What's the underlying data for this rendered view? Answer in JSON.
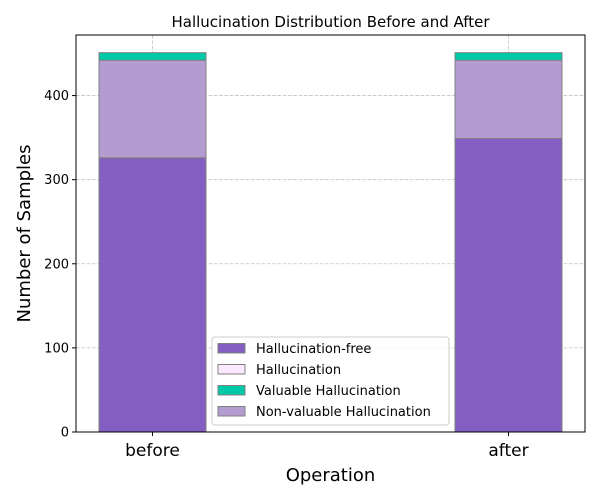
{
  "chart_data": {
    "type": "bar",
    "stacked": true,
    "title": "Hallucination Distribution Before and After",
    "xlabel": "Operation",
    "ylabel": "Number of Samples",
    "categories": [
      "before",
      "after"
    ],
    "ylim": [
      0,
      472
    ],
    "yticks": [
      0,
      100,
      200,
      300,
      400
    ],
    "grid": true,
    "legend_position": "lower-right",
    "series": [
      {
        "name": "Hallucination-free",
        "values": [
          326,
          349
        ],
        "color": "#845EC2"
      },
      {
        "name": "Hallucination",
        "values": [
          0,
          0
        ],
        "color": "#FBEAFF"
      },
      {
        "name": "Non-valuable Hallucination",
        "values": [
          116,
          93
        ],
        "color": "#B39CD0"
      },
      {
        "name": "Valuable Hallucination",
        "values": [
          9,
          9
        ],
        "color": "#00C9A7"
      }
    ],
    "legend_order": [
      "Hallucination-free",
      "Hallucination",
      "Valuable Hallucination",
      "Non-valuable Hallucination"
    ]
  }
}
